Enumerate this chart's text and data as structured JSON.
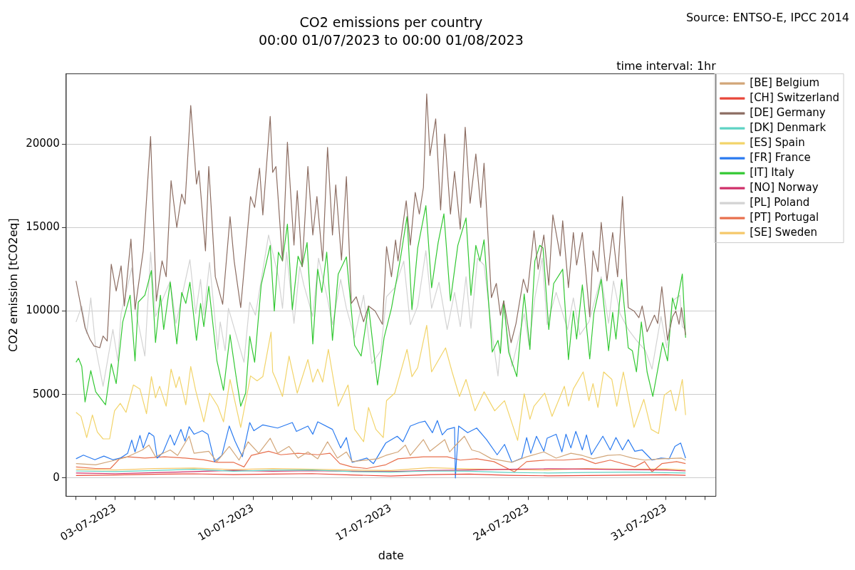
{
  "chart_data": {
    "type": "line",
    "title": "CO2 emissions per country",
    "subtitle": "00:00 01/07/2023 to 00:00 01/08/2023",
    "xlabel": "date",
    "ylabel": "CO2 emission [tCO2eq]",
    "annotations": [
      "Source: ENTSO-E, IPCC 2014",
      "time interval: 1hr"
    ],
    "xlim": [
      "2023-06-30T12:00",
      "2023-08-02T13:00"
    ],
    "ylim": [
      -1100,
      24200
    ],
    "xticks": [
      {
        "value": "2023-07-01",
        "label": null
      },
      {
        "value": "2023-07-02",
        "label": null
      },
      {
        "value": "2023-07-03",
        "label": "03-07-2023"
      },
      {
        "value": "2023-07-04",
        "label": null
      },
      {
        "value": "2023-07-05",
        "label": null
      },
      {
        "value": "2023-07-06",
        "label": null
      },
      {
        "value": "2023-07-07",
        "label": null
      },
      {
        "value": "2023-07-08",
        "label": null
      },
      {
        "value": "2023-07-09",
        "label": null
      },
      {
        "value": "2023-07-10",
        "label": "10-07-2023"
      },
      {
        "value": "2023-07-11",
        "label": null
      },
      {
        "value": "2023-07-12",
        "label": null
      },
      {
        "value": "2023-07-13",
        "label": null
      },
      {
        "value": "2023-07-14",
        "label": null
      },
      {
        "value": "2023-07-15",
        "label": null
      },
      {
        "value": "2023-07-16",
        "label": null
      },
      {
        "value": "2023-07-17",
        "label": "17-07-2023"
      },
      {
        "value": "2023-07-18",
        "label": null
      },
      {
        "value": "2023-07-19",
        "label": null
      },
      {
        "value": "2023-07-20",
        "label": null
      },
      {
        "value": "2023-07-21",
        "label": null
      },
      {
        "value": "2023-07-22",
        "label": null
      },
      {
        "value": "2023-07-23",
        "label": null
      },
      {
        "value": "2023-07-24",
        "label": "24-07-2023"
      },
      {
        "value": "2023-07-25",
        "label": null
      },
      {
        "value": "2023-07-26",
        "label": null
      },
      {
        "value": "2023-07-27",
        "label": null
      },
      {
        "value": "2023-07-28",
        "label": null
      },
      {
        "value": "2023-07-29",
        "label": null
      },
      {
        "value": "2023-07-30",
        "label": null
      },
      {
        "value": "2023-07-31",
        "label": "31-07-2023"
      },
      {
        "value": "2023-08-01",
        "label": null
      },
      {
        "value": "2023-08-02",
        "label": null
      }
    ],
    "yticks": [
      0,
      5000,
      10000,
      15000,
      20000
    ],
    "grid": "y",
    "legend": "right",
    "series": [
      {
        "name": "[BE] Belgium",
        "color": "#d2a679",
        "x": [
          "2023-07-01T00:00",
          "2023-07-02T00:00",
          "2023-07-03T00:00",
          "2023-07-03T15:00",
          "2023-07-04T09:00",
          "2023-07-04T17:00",
          "2023-07-05T01:00",
          "2023-07-05T19:00",
          "2023-07-06T04:00",
          "2023-07-06T18:00",
          "2023-07-07T00:00",
          "2023-07-07T18:00",
          "2023-07-08T04:00",
          "2023-07-08T19:00",
          "2023-07-09T07:00",
          "2023-07-09T18:00",
          "2023-07-10T07:00",
          "2023-07-10T21:00",
          "2023-07-11T06:00",
          "2023-07-11T20:00",
          "2023-07-12T07:00",
          "2023-07-12T19:00",
          "2023-07-13T07:00",
          "2023-07-13T19:00",
          "2023-07-14T07:00",
          "2023-07-14T18:00",
          "2023-07-15T01:00",
          "2023-07-16T08:00",
          "2023-07-16T18:00",
          "2023-07-17T09:00",
          "2023-07-17T18:00",
          "2023-07-18T00:00",
          "2023-07-18T16:00",
          "2023-07-19T00:00",
          "2023-07-19T18:00",
          "2023-07-20T00:00",
          "2023-07-20T06:00",
          "2023-07-20T18:00",
          "2023-07-21T03:00",
          "2023-07-21T12:00",
          "2023-07-22T03:00",
          "2023-07-23T04:00",
          "2023-07-23T22:00",
          "2023-07-24T19:00",
          "2023-07-25T10:00",
          "2023-07-26T04:00",
          "2023-07-26T18:00",
          "2023-07-27T07:00",
          "2023-07-28T01:00",
          "2023-07-28T16:00",
          "2023-07-29T07:00",
          "2023-07-29T22:00",
          "2023-07-30T19:00",
          "2023-07-31T19:00",
          "2023-08-01T00:00"
        ],
        "values": [
          860,
          790,
          1070,
          1270,
          1680,
          1970,
          1270,
          1680,
          1350,
          2500,
          1480,
          1600,
          980,
          1890,
          1070,
          2170,
          1480,
          2380,
          1480,
          1890,
          1190,
          1560,
          1150,
          2170,
          1190,
          1560,
          980,
          1150,
          1350,
          1560,
          1970,
          1350,
          2300,
          1600,
          2300,
          1560,
          1890,
          2500,
          1680,
          1560,
          1150,
          940,
          1270,
          1560,
          1190,
          1480,
          1350,
          1150,
          1350,
          1390,
          1190,
          1070,
          1150,
          1190,
          1070
        ]
      },
      {
        "name": "[CH] Switzerland",
        "color": "#e8473a",
        "x": [
          "2023-07-01T00:00",
          "2023-07-03T00:00",
          "2023-07-05T00:00",
          "2023-07-07T00:00",
          "2023-07-09T00:00",
          "2023-07-11T00:00",
          "2023-07-13T00:00",
          "2023-07-15T00:00",
          "2023-07-17T00:00",
          "2023-07-19T00:00",
          "2023-07-21T00:00",
          "2023-07-23T00:00",
          "2023-07-25T00:00",
          "2023-07-27T00:00",
          "2023-07-29T00:00",
          "2023-07-31T00:00",
          "2023-08-01T00:00"
        ],
        "values": [
          150,
          180,
          220,
          250,
          200,
          230,
          260,
          180,
          120,
          200,
          230,
          160,
          130,
          150,
          170,
          190,
          160
        ]
      },
      {
        "name": "[DE] Germany",
        "color": "#8c6d62",
        "x": [
          "2023-07-01T00:00",
          "2023-07-01T11:00",
          "2023-07-01T17:00",
          "2023-07-01T22:00",
          "2023-07-02T05:00",
          "2023-07-02T09:00",
          "2023-07-02T14:00",
          "2023-07-02T19:00",
          "2023-07-03T01:00",
          "2023-07-03T07:00",
          "2023-07-03T11:00",
          "2023-07-03T19:00",
          "2023-07-04T00:00",
          "2023-07-04T10:00",
          "2023-07-04T19:00",
          "2023-07-05T02:00",
          "2023-07-05T09:00",
          "2023-07-05T14:00",
          "2023-07-05T20:00",
          "2023-07-06T03:00",
          "2023-07-06T09:00",
          "2023-07-06T13:00",
          "2023-07-06T20:00",
          "2023-07-07T03:00",
          "2023-07-07T06:00",
          "2023-07-07T14:00",
          "2023-07-07T18:00",
          "2023-07-08T02:00",
          "2023-07-08T11:00",
          "2023-07-08T20:00",
          "2023-07-09T01:00",
          "2023-07-09T09:00",
          "2023-07-09T21:00",
          "2023-07-10T02:00",
          "2023-07-10T08:00",
          "2023-07-10T12:00",
          "2023-07-10T21:00",
          "2023-07-11T00:00",
          "2023-07-11T04:00",
          "2023-07-11T12:00",
          "2023-07-11T18:00",
          "2023-07-12T02:00",
          "2023-07-12T06:00",
          "2023-07-12T12:00",
          "2023-07-12T19:00",
          "2023-07-13T01:00",
          "2023-07-13T06:00",
          "2023-07-13T13:00",
          "2023-07-13T19:00",
          "2023-07-14T01:00",
          "2023-07-14T05:00",
          "2023-07-14T12:00",
          "2023-07-14T18:00",
          "2023-07-15T00:00",
          "2023-07-15T06:00",
          "2023-07-15T15:00",
          "2023-07-15T21:00",
          "2023-07-16T05:00",
          "2023-07-16T14:00",
          "2023-07-16T19:00",
          "2023-07-17T01:00",
          "2023-07-17T06:00",
          "2023-07-17T09:00",
          "2023-07-17T12:00",
          "2023-07-17T19:00",
          "2023-07-18T00:00",
          "2023-07-18T06:00",
          "2023-07-18T11:00",
          "2023-07-18T16:00",
          "2023-07-18T20:00",
          "2023-07-19T00:00",
          "2023-07-19T07:00",
          "2023-07-19T13:00",
          "2023-07-19T18:00",
          "2023-07-20T01:00",
          "2023-07-20T06:00",
          "2023-07-20T13:00",
          "2023-07-20T19:00",
          "2023-07-21T01:00",
          "2023-07-21T08:00",
          "2023-07-21T14:00",
          "2023-07-21T18:00",
          "2023-07-22T03:00",
          "2023-07-22T09:00",
          "2023-07-22T14:00",
          "2023-07-22T18:00",
          "2023-07-23T03:00",
          "2023-07-23T09:00",
          "2023-07-23T18:00",
          "2023-07-23T23:00",
          "2023-07-24T07:00",
          "2023-07-24T12:00",
          "2023-07-24T19:00",
          "2023-07-25T01:00",
          "2023-07-25T06:00",
          "2023-07-25T15:00",
          "2023-07-25T18:00",
          "2023-07-26T01:00",
          "2023-07-26T07:00",
          "2023-07-26T11:00",
          "2023-07-26T18:00",
          "2023-07-27T03:00",
          "2023-07-27T07:00",
          "2023-07-27T13:00",
          "2023-07-27T17:00",
          "2023-07-28T00:00",
          "2023-07-28T07:00",
          "2023-07-28T13:00",
          "2023-07-28T19:00",
          "2023-07-29T02:00",
          "2023-07-29T09:00",
          "2023-07-29T15:00",
          "2023-07-29T19:00",
          "2023-07-30T01:00",
          "2023-07-30T10:00",
          "2023-07-30T14:00",
          "2023-07-30T19:00",
          "2023-07-31T02:00",
          "2023-07-31T08:00",
          "2023-07-31T12:00",
          "2023-07-31T16:00",
          "2023-07-31T19:00",
          "2023-08-01T00:00"
        ],
        "values": [
          11800,
          9000,
          8300,
          7900,
          7800,
          8500,
          8200,
          12800,
          11200,
          12700,
          10300,
          14300,
          10100,
          13600,
          20450,
          10600,
          13000,
          12050,
          17800,
          15000,
          17000,
          16400,
          22300,
          17600,
          18400,
          13600,
          18650,
          12050,
          10400,
          15650,
          13000,
          10200,
          16850,
          16200,
          18550,
          15750,
          21650,
          18300,
          18650,
          13000,
          20100,
          13950,
          17200,
          12650,
          18650,
          14550,
          16850,
          13000,
          19800,
          14550,
          17550,
          13050,
          18050,
          10450,
          10850,
          9350,
          10300,
          10000,
          9200,
          13850,
          12050,
          14250,
          13000,
          14100,
          16600,
          13950,
          17100,
          15800,
          17400,
          23000,
          19300,
          21500,
          16050,
          20600,
          15800,
          18350,
          14900,
          21000,
          16450,
          19400,
          16200,
          18850,
          10800,
          11650,
          9750,
          10600,
          8100,
          9250,
          11900,
          11100,
          14800,
          12500,
          14550,
          11550,
          15750,
          13300,
          15400,
          11400,
          14700,
          12750,
          14700,
          9650,
          13600,
          12350,
          15300,
          11800,
          14700,
          12050,
          16850,
          10200,
          10000,
          9600,
          10300,
          8750,
          9750,
          9250,
          11450,
          8250,
          9650,
          10000,
          9200,
          10200,
          8550
        ]
      },
      {
        "name": "[DK] Denmark",
        "color": "#5fd3c4",
        "x": [
          "2023-07-01T00:00",
          "2023-07-03T00:00",
          "2023-07-05T00:00",
          "2023-07-07T00:00",
          "2023-07-09T00:00",
          "2023-07-11T00:00",
          "2023-07-13T00:00",
          "2023-07-15T00:00",
          "2023-07-17T00:00",
          "2023-07-19T00:00",
          "2023-07-21T00:00",
          "2023-07-23T00:00",
          "2023-07-25T00:00",
          "2023-07-27T00:00",
          "2023-07-29T00:00",
          "2023-07-31T00:00",
          "2023-08-01T00:00"
        ],
        "values": [
          420,
          380,
          450,
          520,
          400,
          470,
          480,
          380,
          350,
          420,
          400,
          330,
          300,
          330,
          350,
          320,
          300
        ]
      },
      {
        "name": "[ES] Spain",
        "color": "#f2d46a",
        "x": [
          "2023-07-01T00:00",
          "2023-07-01T06:00",
          "2023-07-01T13:00",
          "2023-07-01T20:00",
          "2023-07-02T02:00",
          "2023-07-02T09:00",
          "2023-07-02T17:00",
          "2023-07-02T23:00",
          "2023-07-03T06:00",
          "2023-07-03T13:00",
          "2023-07-03T22:00",
          "2023-07-04T06:00",
          "2023-07-04T14:00",
          "2023-07-04T20:00",
          "2023-07-05T01:00",
          "2023-07-05T06:00",
          "2023-07-05T14:00",
          "2023-07-05T20:00",
          "2023-07-06T02:00",
          "2023-07-06T06:00",
          "2023-07-06T14:00",
          "2023-07-06T20:00",
          "2023-07-07T02:00",
          "2023-07-07T12:00",
          "2023-07-07T19:00",
          "2023-07-08T05:00",
          "2023-07-08T12:00",
          "2023-07-08T20:00",
          "2023-07-09T09:00",
          "2023-07-09T21:00",
          "2023-07-10T05:00",
          "2023-07-10T12:00",
          "2023-07-10T22:00",
          "2023-07-11T00:00",
          "2023-07-11T04:00",
          "2023-07-11T12:00",
          "2023-07-11T20:00",
          "2023-07-12T06:00",
          "2023-07-12T19:00",
          "2023-07-13T01:00",
          "2023-07-13T07:00",
          "2023-07-13T13:00",
          "2023-07-13T20:00",
          "2023-07-14T03:00",
          "2023-07-14T08:00",
          "2023-07-14T20:00",
          "2023-07-15T04:00",
          "2023-07-15T15:00",
          "2023-07-15T21:00",
          "2023-07-16T06:00",
          "2023-07-16T15:00",
          "2023-07-16T19:00",
          "2023-07-17T05:00",
          "2023-07-17T20:00",
          "2023-07-18T02:00",
          "2023-07-18T09:00",
          "2023-07-18T20:00",
          "2023-07-19T02:00",
          "2023-07-19T19:00",
          "2023-07-20T03:00",
          "2023-07-20T12:00",
          "2023-07-20T20:00",
          "2023-07-21T07:00",
          "2023-07-21T18:00",
          "2023-07-22T07:00",
          "2023-07-22T19:00",
          "2023-07-23T11:00",
          "2023-07-23T19:00",
          "2023-07-24T02:00",
          "2023-07-24T07:00",
          "2023-07-24T20:00",
          "2023-07-25T05:00",
          "2023-07-25T20:00",
          "2023-07-26T01:00",
          "2023-07-26T07:00",
          "2023-07-26T19:00",
          "2023-07-27T02:00",
          "2023-07-27T07:00",
          "2023-07-27T13:00",
          "2023-07-27T20:00",
          "2023-07-28T06:00",
          "2023-07-28T12:00",
          "2023-07-28T20:00",
          "2023-07-29T09:00",
          "2023-07-29T21:00",
          "2023-07-30T06:00",
          "2023-07-30T15:00",
          "2023-07-30T22:00",
          "2023-07-31T06:00",
          "2023-07-31T12:00",
          "2023-07-31T20:00",
          "2023-08-01T00:00"
        ],
        "values": [
          3930,
          3690,
          2420,
          3770,
          2750,
          2340,
          2340,
          4020,
          4470,
          3930,
          5570,
          5330,
          3850,
          6070,
          4800,
          5490,
          4300,
          6520,
          5410,
          6070,
          4380,
          6680,
          5250,
          3360,
          5080,
          4300,
          3360,
          5900,
          3030,
          6110,
          5820,
          6070,
          8730,
          6350,
          5900,
          4880,
          7300,
          5080,
          7090,
          5740,
          6520,
          5740,
          7700,
          5650,
          4300,
          5570,
          2910,
          2170,
          4220,
          2910,
          2420,
          4630,
          5080,
          7700,
          6070,
          6600,
          9140,
          6350,
          7790,
          6350,
          4880,
          5900,
          4020,
          5160,
          4020,
          4630,
          2250,
          5040,
          3520,
          4300,
          5080,
          3690,
          5490,
          4300,
          5330,
          6350,
          4630,
          5650,
          4220,
          6350,
          5900,
          4300,
          6350,
          3030,
          4710,
          2910,
          2660,
          4960,
          5250,
          4020,
          5900,
          3770
        ]
      },
      {
        "name": "[FR] France",
        "color": "#2b7bf0",
        "x": [
          "2023-07-01T00:00",
          "2023-07-01T09:00",
          "2023-07-01T23:00",
          "2023-07-02T10:00",
          "2023-07-02T21:00",
          "2023-07-03T06:00",
          "2023-07-03T15:00",
          "2023-07-03T20:00",
          "2023-07-04T00:00",
          "2023-07-04T06:00",
          "2023-07-04T10:00",
          "2023-07-04T17:00",
          "2023-07-04T23:00",
          "2023-07-05T03:00",
          "2023-07-05T10:00",
          "2023-07-05T19:00",
          "2023-07-06T00:00",
          "2023-07-06T08:00",
          "2023-07-06T13:00",
          "2023-07-06T18:00",
          "2023-07-07T00:00",
          "2023-07-07T10:00",
          "2023-07-07T17:00",
          "2023-07-08T01:00",
          "2023-07-08T10:00",
          "2023-07-08T19:00",
          "2023-07-09T02:00",
          "2023-07-09T11:00",
          "2023-07-09T20:00",
          "2023-07-10T01:00",
          "2023-07-10T12:00",
          "2023-07-11T06:00",
          "2023-07-12T00:00",
          "2023-07-12T05:00",
          "2023-07-12T19:00",
          "2023-07-13T01:00",
          "2023-07-13T07:00",
          "2023-07-14T01:00",
          "2023-07-14T11:00",
          "2023-07-14T18:00",
          "2023-07-15T01:00",
          "2023-07-15T19:00",
          "2023-07-16T03:00",
          "2023-07-16T18:00",
          "2023-07-17T08:00",
          "2023-07-17T15:00",
          "2023-07-18T00:00",
          "2023-07-18T11:00",
          "2023-07-18T18:00",
          "2023-07-19T03:00",
          "2023-07-19T09:00",
          "2023-07-19T15:00",
          "2023-07-19T21:00",
          "2023-07-20T06:00",
          "2023-07-20T07:00",
          "2023-07-20T11:00",
          "2023-07-20T22:00",
          "2023-07-21T09:00",
          "2023-07-21T21:00",
          "2023-07-22T10:00",
          "2023-07-22T19:00",
          "2023-07-23T04:00",
          "2023-07-23T16:00",
          "2023-07-23T22:00",
          "2023-07-24T03:00",
          "2023-07-24T10:00",
          "2023-07-24T19:00",
          "2023-07-24T23:00",
          "2023-07-25T10:00",
          "2023-07-25T17:00",
          "2023-07-25T22:00",
          "2023-07-26T04:00",
          "2023-07-26T10:00",
          "2023-07-26T18:00",
          "2023-07-26T23:00",
          "2023-07-27T05:00",
          "2023-07-27T19:00",
          "2023-07-28T04:00",
          "2023-07-28T11:00",
          "2023-07-28T19:00",
          "2023-07-29T02:00",
          "2023-07-29T10:00",
          "2023-07-29T19:00",
          "2023-07-30T07:00",
          "2023-07-30T18:00",
          "2023-07-31T04:00",
          "2023-07-31T11:00",
          "2023-07-31T18:00",
          "2023-08-01T00:00"
        ],
        "values": [
          1150,
          1370,
          1090,
          1310,
          1090,
          1190,
          1480,
          2270,
          1560,
          2550,
          1800,
          2710,
          2500,
          1190,
          1520,
          2580,
          1970,
          2910,
          2210,
          3070,
          2620,
          2830,
          2620,
          980,
          1350,
          3110,
          2210,
          1270,
          3320,
          2830,
          3180,
          2990,
          3320,
          2790,
          3110,
          2620,
          3360,
          2910,
          1800,
          2420,
          940,
          1190,
          860,
          2090,
          2500,
          2170,
          3110,
          3320,
          3400,
          2710,
          3440,
          2580,
          2910,
          3030,
          0,
          3110,
          2710,
          2990,
          2300,
          1390,
          2010,
          940,
          1190,
          2420,
          1480,
          2500,
          1600,
          2380,
          2620,
          1560,
          2620,
          1800,
          2790,
          1680,
          2580,
          1390,
          2500,
          1680,
          2420,
          1680,
          2300,
          1600,
          1680,
          1070,
          1190,
          1150,
          1890,
          2090,
          1190
        ]
      },
      {
        "name": "[IT] Italy",
        "color": "#33c833",
        "x": [
          "2023-07-01T00:00",
          "2023-07-01T03:00",
          "2023-07-01T07:00",
          "2023-07-01T11:00",
          "2023-07-01T18:00",
          "2023-07-02T00:00",
          "2023-07-02T12:00",
          "2023-07-02T19:00",
          "2023-07-03T01:00",
          "2023-07-03T09:00",
          "2023-07-03T18:00",
          "2023-07-04T00:00",
          "2023-07-04T04:00",
          "2023-07-04T12:00",
          "2023-07-04T20:00",
          "2023-07-05T01:00",
          "2023-07-05T07:00",
          "2023-07-05T11:00",
          "2023-07-05T19:00",
          "2023-07-06T03:00",
          "2023-07-06T09:00",
          "2023-07-06T14:00",
          "2023-07-06T19:00",
          "2023-07-07T03:00",
          "2023-07-07T08:00",
          "2023-07-07T12:00",
          "2023-07-07T18:00",
          "2023-07-08T04:00",
          "2023-07-08T12:00",
          "2023-07-08T20:00",
          "2023-07-09T03:00",
          "2023-07-09T09:00",
          "2023-07-09T15:00",
          "2023-07-09T20:00",
          "2023-07-10T02:00",
          "2023-07-10T10:00",
          "2023-07-10T21:00",
          "2023-07-11T02:00",
          "2023-07-11T07:00",
          "2023-07-11T12:00",
          "2023-07-11T18:00",
          "2023-07-12T00:00",
          "2023-07-12T07:00",
          "2023-07-12T12:00",
          "2023-07-12T18:00",
          "2023-07-13T01:00",
          "2023-07-13T07:00",
          "2023-07-13T12:00",
          "2023-07-13T18:00",
          "2023-07-14T01:00",
          "2023-07-14T08:00",
          "2023-07-14T18:00",
          "2023-07-15T04:00",
          "2023-07-15T12:00",
          "2023-07-15T21:00",
          "2023-07-16T08:00",
          "2023-07-16T16:00",
          "2023-07-17T01:00",
          "2023-07-17T12:00",
          "2023-07-17T20:00",
          "2023-07-18T02:00",
          "2023-07-18T09:00",
          "2023-07-18T19:00",
          "2023-07-19T02:00",
          "2023-07-19T10:00",
          "2023-07-19T17:00",
          "2023-07-20T01:00",
          "2023-07-20T10:00",
          "2023-07-20T20:00",
          "2023-07-21T02:00",
          "2023-07-21T08:00",
          "2023-07-21T13:00",
          "2023-07-21T18:00",
          "2023-07-22T04:00",
          "2023-07-22T11:00",
          "2023-07-22T14:00",
          "2023-07-22T18:00",
          "2023-07-23T00:00",
          "2023-07-23T10:00",
          "2023-07-23T19:00",
          "2023-07-24T02:00",
          "2023-07-24T08:00",
          "2023-07-24T14:00",
          "2023-07-24T18:00",
          "2023-07-25T01:00",
          "2023-07-25T07:00",
          "2023-07-25T18:00",
          "2023-07-26T01:00",
          "2023-07-26T07:00",
          "2023-07-26T11:00",
          "2023-07-26T18:00",
          "2023-07-27T03:00",
          "2023-07-27T08:00",
          "2023-07-27T17:00",
          "2023-07-28T02:00",
          "2023-07-28T07:00",
          "2023-07-28T11:00",
          "2023-07-28T18:00",
          "2023-07-29T02:00",
          "2023-07-29T07:00",
          "2023-07-29T12:00",
          "2023-07-29T18:00",
          "2023-07-30T01:00",
          "2023-07-30T08:00",
          "2023-07-30T20:00",
          "2023-07-31T02:00",
          "2023-07-31T08:00",
          "2023-07-31T12:00",
          "2023-07-31T20:00",
          "2023-08-01T00:00"
        ],
        "values": [
          6930,
          7170,
          6680,
          4550,
          6430,
          5160,
          4380,
          6840,
          5650,
          9340,
          10940,
          7010,
          10530,
          10940,
          12420,
          8110,
          10940,
          8890,
          11720,
          8030,
          11110,
          10450,
          11720,
          8240,
          10450,
          9060,
          11480,
          7010,
          5250,
          8570,
          6190,
          4300,
          5080,
          8480,
          6930,
          11560,
          13930,
          10000,
          13520,
          12990,
          15200,
          10080,
          13280,
          12660,
          14100,
          8030,
          12500,
          11110,
          13520,
          8240,
          12210,
          13240,
          7950,
          7300,
          10290,
          5570,
          8400,
          10160,
          13160,
          15660,
          10080,
          13770,
          16310,
          11390,
          14100,
          15820,
          10610,
          13930,
          15570,
          10940,
          13930,
          12990,
          14260,
          7540,
          8240,
          7460,
          10610,
          7540,
          6070,
          11020,
          7700,
          12990,
          13930,
          13770,
          8890,
          11640,
          12500,
          7090,
          10000,
          8320,
          11560,
          7130,
          9840,
          11890,
          7620,
          9920,
          8320,
          11890,
          7790,
          7620,
          6350,
          9340,
          6350,
          4880,
          8110,
          7010,
          10780,
          10080,
          12210,
          8400
        ]
      },
      {
        "name": "[NO] Norway",
        "color": "#d0306a",
        "x": [
          "2023-07-01T00:00",
          "2023-07-03T00:00",
          "2023-07-05T00:00",
          "2023-07-07T00:00",
          "2023-07-09T00:00",
          "2023-07-11T00:00",
          "2023-07-13T00:00",
          "2023-07-15T00:00",
          "2023-07-17T00:00",
          "2023-07-19T00:00",
          "2023-07-21T00:00",
          "2023-07-23T00:00",
          "2023-07-25T00:00",
          "2023-07-27T00:00",
          "2023-07-29T00:00",
          "2023-07-31T00:00",
          "2023-08-01T00:00"
        ],
        "values": [
          300,
          260,
          320,
          380,
          460,
          400,
          430,
          400,
          380,
          450,
          480,
          520,
          550,
          530,
          500,
          480,
          420
        ]
      },
      {
        "name": "[PL] Poland",
        "color": "#d3d3d3",
        "x": [
          "2023-07-01T00:00",
          "2023-07-01T07:00",
          "2023-07-01T13:00",
          "2023-07-01T18:00",
          "2023-07-02T00:00",
          "2023-07-02T09:00",
          "2023-07-02T21:00",
          "2023-07-03T03:00",
          "2023-07-03T07:00",
          "2023-07-03T20:00",
          "2023-07-04T02:00",
          "2023-07-04T12:00",
          "2023-07-04T19:00",
          "2023-07-05T01:00",
          "2023-07-05T19:00",
          "2023-07-06T02:00",
          "2023-07-06T19:00",
          "2023-07-07T02:00",
          "2023-07-07T08:00",
          "2023-07-07T12:00",
          "2023-07-07T19:00",
          "2023-07-08T05:00",
          "2023-07-08T08:00",
          "2023-07-08T14:00",
          "2023-07-08T18:00",
          "2023-07-09T13:00",
          "2023-07-09T20:00",
          "2023-07-10T03:00",
          "2023-07-10T19:00",
          "2023-07-11T07:00",
          "2023-07-11T12:00",
          "2023-07-11T17:00",
          "2023-07-12T02:00",
          "2023-07-12T09:00",
          "2023-07-12T14:00",
          "2023-07-13T01:00",
          "2023-07-13T08:00",
          "2023-07-13T18:00",
          "2023-07-14T01:00",
          "2023-07-14T11:00",
          "2023-07-14T18:00",
          "2023-07-15T04:00",
          "2023-07-15T15:00",
          "2023-07-16T01:00",
          "2023-07-16T12:00",
          "2023-07-16T19:00",
          "2023-07-17T05:00",
          "2023-07-17T16:00",
          "2023-07-18T00:00",
          "2023-07-18T09:00",
          "2023-07-18T19:00",
          "2023-07-19T02:00",
          "2023-07-19T11:00",
          "2023-07-19T21:00",
          "2023-07-20T06:00",
          "2023-07-20T13:00",
          "2023-07-20T20:00",
          "2023-07-21T02:00",
          "2023-07-21T10:00",
          "2023-07-21T18:00",
          "2023-07-22T04:00",
          "2023-07-22T11:00",
          "2023-07-22T18:00",
          "2023-07-23T04:00",
          "2023-07-23T14:00",
          "2023-07-23T19:00",
          "2023-07-24T01:00",
          "2023-07-24T08:00",
          "2023-07-24T17:00",
          "2023-07-24T23:00",
          "2023-07-25T10:00",
          "2023-07-26T00:00",
          "2023-07-26T07:00",
          "2023-07-26T15:00",
          "2023-07-27T02:00",
          "2023-07-27T17:00",
          "2023-07-28T02:00",
          "2023-07-28T08:00",
          "2023-07-28T16:00",
          "2023-07-29T02:00",
          "2023-07-29T12:00",
          "2023-07-29T23:00",
          "2023-07-30T07:00",
          "2023-07-30T18:00",
          "2023-07-31T01:00",
          "2023-07-31T08:00",
          "2023-07-31T17:00",
          "2023-07-31T20:00",
          "2023-08-01T00:00"
        ],
        "values": [
          9340,
          10290,
          8650,
          10780,
          7790,
          5490,
          8890,
          7010,
          9840,
          12580,
          9750,
          7300,
          13520,
          9670,
          11800,
          9260,
          13070,
          9840,
          11890,
          9750,
          12910,
          7700,
          9340,
          7620,
          10160,
          6930,
          10530,
          9750,
          14550,
          12050,
          10160,
          13520,
          9260,
          12660,
          11560,
          9670,
          13160,
          10940,
          9180,
          11890,
          10160,
          8400,
          10940,
          6840,
          7620,
          10860,
          11390,
          12990,
          9180,
          10290,
          13610,
          10160,
          11720,
          8890,
          11110,
          9060,
          12050,
          8970,
          13160,
          12750,
          8570,
          6110,
          10160,
          6680,
          8730,
          9840,
          7950,
          10780,
          13160,
          9180,
          11110,
          8890,
          10780,
          8570,
          9340,
          12050,
          9260,
          11800,
          9840,
          8890,
          8240,
          7620,
          6520,
          9670,
          7790,
          10610,
          10940,
          9060,
          8890
        ]
      },
      {
        "name": "[PT] Portugal",
        "color": "#e8704e",
        "x": [
          "2023-07-01T00:00",
          "2023-07-02T00:00",
          "2023-07-02T18:00",
          "2023-07-03T06:00",
          "2023-07-03T15:00",
          "2023-07-04T12:00",
          "2023-07-05T12:00",
          "2023-07-06T13:00",
          "2023-07-07T12:00",
          "2023-07-08T04:00",
          "2023-07-09T00:00",
          "2023-07-09T13:00",
          "2023-07-09T22:00",
          "2023-07-10T19:00",
          "2023-07-11T10:00",
          "2023-07-12T07:00",
          "2023-07-13T07:00",
          "2023-07-13T22:00",
          "2023-07-14T10:00",
          "2023-07-15T01:00",
          "2023-07-15T19:00",
          "2023-07-16T18:00",
          "2023-07-17T09:00",
          "2023-07-18T16:00",
          "2023-07-19T21:00",
          "2023-07-20T13:00",
          "2023-07-21T09:00",
          "2023-07-22T06:00",
          "2023-07-23T07:00",
          "2023-07-23T22:00",
          "2023-07-24T21:00",
          "2023-07-25T19:00",
          "2023-07-26T18:00",
          "2023-07-27T10:00",
          "2023-07-28T04:00",
          "2023-07-29T10:00",
          "2023-07-29T22:00",
          "2023-07-30T07:00",
          "2023-07-30T19:00",
          "2023-07-31T13:00",
          "2023-08-01T00:00"
        ],
        "values": [
          660,
          570,
          570,
          1190,
          1270,
          1190,
          1270,
          1190,
          1090,
          940,
          940,
          660,
          1350,
          1600,
          1390,
          1480,
          1390,
          1480,
          860,
          660,
          570,
          790,
          1150,
          1270,
          1270,
          1070,
          1150,
          980,
          370,
          980,
          1070,
          1070,
          1150,
          860,
          1070,
          660,
          980,
          370,
          860,
          980,
          860
        ]
      },
      {
        "name": "[SE] Sweden",
        "color": "#f5c86a",
        "x": [
          "2023-07-01T00:00",
          "2023-07-03T00:00",
          "2023-07-05T00:00",
          "2023-07-07T00:00",
          "2023-07-09T00:00",
          "2023-07-11T00:00",
          "2023-07-13T00:00",
          "2023-07-15T00:00",
          "2023-07-17T00:00",
          "2023-07-19T00:00",
          "2023-07-21T00:00",
          "2023-07-23T00:00",
          "2023-07-25T00:00",
          "2023-07-27T00:00",
          "2023-07-29T00:00",
          "2023-07-31T00:00",
          "2023-08-01T00:00"
        ],
        "values": [
          520,
          480,
          560,
          600,
          500,
          560,
          520,
          480,
          450,
          620,
          540,
          500,
          480,
          560,
          520,
          540,
          480
        ]
      }
    ]
  }
}
